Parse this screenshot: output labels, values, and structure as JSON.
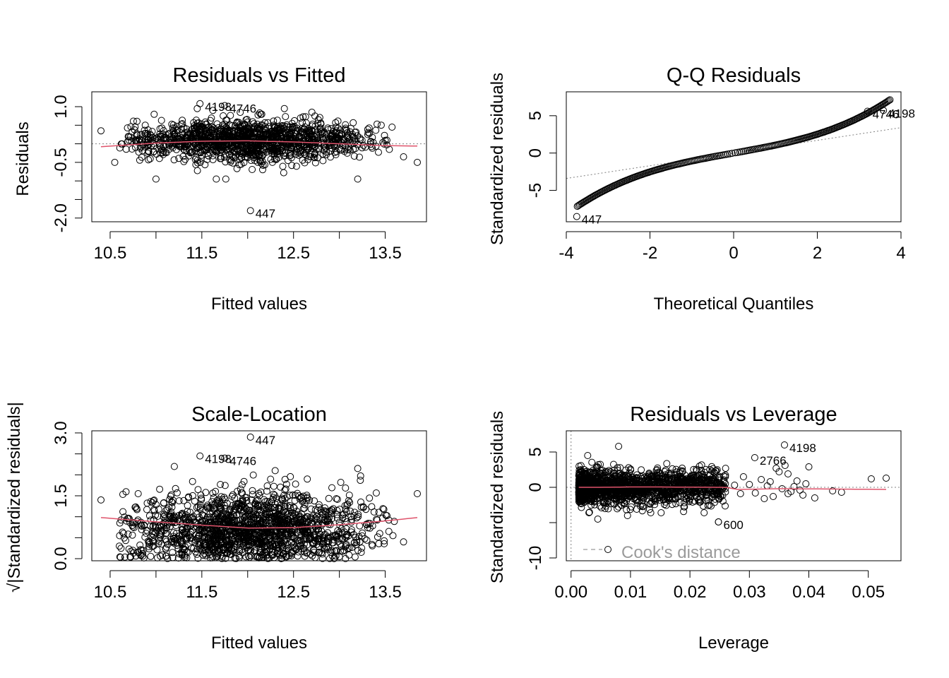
{
  "colors": {
    "points": "#000000",
    "smooth_line": "#DF536B",
    "reference_line": "#808080",
    "cook_line": "#9a9a9a"
  },
  "chart_data": [
    {
      "id": "rvf",
      "type": "scatter",
      "title": "Residuals vs Fitted",
      "xlabel": "Fitted values",
      "ylabel": "Residuals",
      "xlim": [
        10.3,
        13.95
      ],
      "ylim": [
        -2.1,
        1.4
      ],
      "xticks": [
        10.5,
        11.5,
        12.5,
        13.5
      ],
      "xticklabels": [
        "10.5",
        "11.5",
        "12.5",
        "13.5"
      ],
      "yticks": [
        -2.0,
        -1.5,
        -1.0,
        -0.5,
        0.0,
        0.5,
        1.0
      ],
      "yticklabels": [
        "-2.0",
        "",
        "",
        "-0.5",
        "",
        "",
        "1.0"
      ],
      "x_minor_ticks": [
        11.0,
        12.0,
        13.0
      ],
      "reference_h": 0,
      "reference_style": "dotted",
      "cloud": {
        "x_range": [
          10.6,
          13.6
        ],
        "x_center": 12.0,
        "y_center": 0.1,
        "y_spread_center": 0.3,
        "y_spread_edge": 0.2,
        "n": 1400
      },
      "extreme_points": [
        {
          "x": 10.4,
          "y": 0.35
        },
        {
          "x": 13.85,
          "y": -0.5
        },
        {
          "x": 11.0,
          "y": -0.95
        },
        {
          "x": 11.45,
          "y": 0.95
        },
        {
          "x": 12.4,
          "y": 0.95
        },
        {
          "x": 13.2,
          "y": -0.95
        },
        {
          "x": 10.55,
          "y": -0.5
        },
        {
          "x": 13.7,
          "y": -0.35
        },
        {
          "x": 12.7,
          "y": 0.85
        }
      ],
      "smooth": {
        "x": [
          10.4,
          11.0,
          11.5,
          12.0,
          12.5,
          13.0,
          13.5,
          13.85
        ],
        "y": [
          -0.08,
          0.02,
          0.07,
          0.08,
          0.05,
          0.0,
          -0.05,
          -0.06
        ]
      },
      "labeled_points": [
        {
          "label": "4198",
          "x": 11.48,
          "y": 1.08
        },
        {
          "label": "4746",
          "x": 11.75,
          "y": 1.03
        },
        {
          "label": "447",
          "x": 12.03,
          "y": -1.8
        }
      ]
    },
    {
      "id": "qq",
      "type": "scatter",
      "title": "Q-Q Residuals",
      "xlabel": "Theoretical Quantiles",
      "ylabel": "Standardized residuals",
      "xlim": [
        -4.0,
        4.0
      ],
      "ylim": [
        -9.2,
        8.2
      ],
      "xticks": [
        -4,
        -2,
        0,
        2,
        4
      ],
      "xticklabels": [
        "-4",
        "-2",
        "0",
        "2",
        "4"
      ],
      "yticks": [
        -5,
        0,
        5
      ],
      "yticklabels": [
        "-5",
        "0",
        "5"
      ],
      "reference_line": {
        "slope": 0.85,
        "intercept": 0.0,
        "style": "dotted"
      },
      "curve": {
        "x_range": [
          -3.75,
          3.75
        ],
        "slope": 1.0,
        "cubic": 0.065
      },
      "labeled_points": [
        {
          "label": "4198",
          "x": 3.58,
          "y": 5.7
        },
        {
          "label": "4746",
          "x": 3.2,
          "y": 5.6
        },
        {
          "label": "447",
          "x": -3.75,
          "y": -8.5
        }
      ]
    },
    {
      "id": "sl",
      "type": "scatter",
      "title": "Scale-Location",
      "xlabel": "Fitted values",
      "ylabel": "√|Standardized residuals|",
      "xlim": [
        10.3,
        13.95
      ],
      "ylim": [
        -0.05,
        3.05
      ],
      "xticks": [
        10.5,
        11.5,
        12.5,
        13.5
      ],
      "xticklabels": [
        "10.5",
        "11.5",
        "12.5",
        "13.5"
      ],
      "yticks": [
        0.0,
        0.5,
        1.0,
        1.5,
        2.0,
        2.5,
        3.0
      ],
      "yticklabels": [
        "0.0",
        "",
        "",
        "1.5",
        "",
        "",
        "3.0"
      ],
      "x_minor_ticks": [
        11.0,
        12.0,
        13.0
      ],
      "cloud": {
        "x_range": [
          10.6,
          13.6
        ],
        "x_center": 12.0,
        "y_center": 0.7,
        "y_spread": 0.45,
        "n": 1700
      },
      "extreme_points": [
        {
          "x": 10.4,
          "y": 1.4
        },
        {
          "x": 13.85,
          "y": 1.55
        },
        {
          "x": 13.2,
          "y": 2.15
        },
        {
          "x": 11.2,
          "y": 2.2
        },
        {
          "x": 12.3,
          "y": 2.1
        },
        {
          "x": 10.6,
          "y": 0.3
        },
        {
          "x": 13.7,
          "y": 0.4
        },
        {
          "x": 12.65,
          "y": 1.9
        }
      ],
      "smooth": {
        "x": [
          10.4,
          11.0,
          11.5,
          12.0,
          12.5,
          13.0,
          13.5,
          13.85
        ],
        "y": [
          0.98,
          0.88,
          0.8,
          0.73,
          0.74,
          0.81,
          0.9,
          0.98
        ]
      },
      "labeled_points": [
        {
          "label": "447",
          "x": 12.03,
          "y": 2.9
        },
        {
          "label": "4198",
          "x": 11.48,
          "y": 2.45
        },
        {
          "label": "4746",
          "x": 11.75,
          "y": 2.4
        }
      ]
    },
    {
      "id": "rvl",
      "type": "scatter",
      "title": "Residuals vs Leverage",
      "xlabel": "Leverage",
      "ylabel": "Standardized residuals",
      "xlim": [
        -0.0008,
        0.0555
      ],
      "ylim": [
        -10.4,
        8.0
      ],
      "xticks": [
        0.0,
        0.01,
        0.02,
        0.03,
        0.04,
        0.05
      ],
      "xticklabels": [
        "0.00",
        "0.01",
        "0.02",
        "0.03",
        "0.04",
        "0.05"
      ],
      "yticks": [
        -10,
        -5,
        0,
        5
      ],
      "yticklabels": [
        "-10",
        "",
        "0",
        "5"
      ],
      "reference_h": 0,
      "reference_v": 0,
      "reference_style": "dotted",
      "cloud": {
        "x_range": [
          0.0013,
          0.026
        ],
        "y_spread": 1.2,
        "n": 1500
      },
      "far_points": [
        {
          "x": 0.03,
          "y": 0.4
        },
        {
          "x": 0.031,
          "y": -0.8
        },
        {
          "x": 0.032,
          "y": 1.1
        },
        {
          "x": 0.033,
          "y": 0.2
        },
        {
          "x": 0.034,
          "y": -1.3
        },
        {
          "x": 0.035,
          "y": 2.2
        },
        {
          "x": 0.036,
          "y": 3.1
        },
        {
          "x": 0.037,
          "y": -0.6
        },
        {
          "x": 0.038,
          "y": 0.9
        },
        {
          "x": 0.039,
          "y": -1.1
        },
        {
          "x": 0.0395,
          "y": 0.5
        },
        {
          "x": 0.04,
          "y": 2.9
        },
        {
          "x": 0.041,
          "y": -1.5
        },
        {
          "x": 0.044,
          "y": -0.5
        },
        {
          "x": 0.0455,
          "y": -0.7
        },
        {
          "x": 0.0505,
          "y": 1.2
        },
        {
          "x": 0.053,
          "y": 1.3
        },
        {
          "x": 0.0345,
          "y": 2.7
        },
        {
          "x": 0.0325,
          "y": -1.6
        },
        {
          "x": 0.0285,
          "y": -0.9
        },
        {
          "x": 0.0275,
          "y": 0.3
        },
        {
          "x": 0.029,
          "y": 1.5
        },
        {
          "x": 0.0355,
          "y": -0.2
        },
        {
          "x": 0.0365,
          "y": 1.9
        },
        {
          "x": 0.0375,
          "y": 0.1
        },
        {
          "x": 0.0385,
          "y": -0.4
        },
        {
          "x": 0.0365,
          "y": -0.9
        },
        {
          "x": 0.0335,
          "y": 0.8
        }
      ],
      "extreme_points": [
        {
          "x": 0.0028,
          "y": 4.5
        },
        {
          "x": 0.008,
          "y": 5.8
        },
        {
          "x": 0.0216,
          "y": 3.0
        },
        {
          "x": 0.0248,
          "y": -4.9
        },
        {
          "x": 0.0095,
          "y": -4.0
        },
        {
          "x": 0.0045,
          "y": -4.5
        }
      ],
      "smooth": {
        "x": [
          0.0013,
          0.005,
          0.01,
          0.015,
          0.02,
          0.026,
          0.028,
          0.035,
          0.045,
          0.053
        ],
        "y": [
          0.0,
          0.0,
          0.05,
          0.05,
          0.02,
          0.0,
          -0.3,
          -0.2,
          -0.25,
          -0.3
        ]
      },
      "labeled_points": [
        {
          "label": "4198",
          "x": 0.0359,
          "y": 6.0
        },
        {
          "label": "2766",
          "x": 0.0309,
          "y": 4.2
        },
        {
          "label": "600",
          "x": 0.0248,
          "y": -4.9
        }
      ],
      "cook_legend": "Cook's distance"
    }
  ]
}
